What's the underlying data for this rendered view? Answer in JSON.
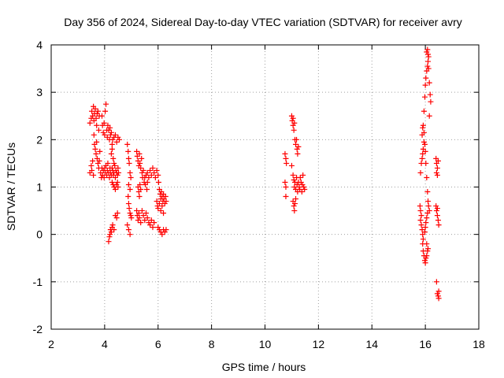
{
  "chart_data": {
    "type": "scatter",
    "title": "Day 356 of 2024, Sidereal Day-to-day VTEC variation (SDTVAR) for receiver avry",
    "xlabel": "GPS time / hours",
    "ylabel": "SDTVAR / TECUs",
    "xlim": [
      2,
      18
    ],
    "ylim": [
      -2,
      4
    ],
    "xticks": [
      2,
      4,
      6,
      8,
      10,
      12,
      14,
      16,
      18
    ],
    "yticks": [
      -2,
      -1,
      0,
      1,
      2,
      3,
      4
    ],
    "xtick_labels": [
      "2",
      "4",
      "6",
      "8",
      "10",
      "12",
      "14",
      "16",
      "18"
    ],
    "ytick_labels": [
      "-2",
      "-1",
      "0",
      "1",
      "2",
      "3",
      "4"
    ],
    "grid": true,
    "marker": "+",
    "color": "#ff0000",
    "series": [
      {
        "name": "SDTVAR",
        "points": [
          [
            3.45,
            2.35
          ],
          [
            3.5,
            2.45
          ],
          [
            3.52,
            2.6
          ],
          [
            3.55,
            2.5
          ],
          [
            3.58,
            2.7
          ],
          [
            3.6,
            2.4
          ],
          [
            3.62,
            2.55
          ],
          [
            3.65,
            2.65
          ],
          [
            3.68,
            2.45
          ],
          [
            3.7,
            2.3
          ],
          [
            3.72,
            2.55
          ],
          [
            3.75,
            2.6
          ],
          [
            3.78,
            2.2
          ],
          [
            3.8,
            2.5
          ],
          [
            3.6,
            2.1
          ],
          [
            3.62,
            1.9
          ],
          [
            3.65,
            1.8
          ],
          [
            3.68,
            1.7
          ],
          [
            3.7,
            1.95
          ],
          [
            3.72,
            1.6
          ],
          [
            3.75,
            1.5
          ],
          [
            3.78,
            1.4
          ],
          [
            3.8,
            1.55
          ],
          [
            3.82,
            1.75
          ],
          [
            3.45,
            1.3
          ],
          [
            3.5,
            1.45
          ],
          [
            3.52,
            1.35
          ],
          [
            3.55,
            1.55
          ],
          [
            3.58,
            1.25
          ],
          [
            3.85,
            1.3
          ],
          [
            3.88,
            1.2
          ],
          [
            3.9,
            1.4
          ],
          [
            3.92,
            1.25
          ],
          [
            3.95,
            1.35
          ],
          [
            3.98,
            1.2
          ],
          [
            4.0,
            1.4
          ],
          [
            4.02,
            1.3
          ],
          [
            4.05,
            1.45
          ],
          [
            4.08,
            1.25
          ],
          [
            4.1,
            1.35
          ],
          [
            4.12,
            1.5
          ],
          [
            4.15,
            1.3
          ],
          [
            4.18,
            1.2
          ],
          [
            4.2,
            1.4
          ],
          [
            4.22,
            1.3
          ],
          [
            4.25,
            1.25
          ],
          [
            4.28,
            1.4
          ],
          [
            4.3,
            1.35
          ],
          [
            4.32,
            1.25
          ],
          [
            4.35,
            1.3
          ],
          [
            4.38,
            1.45
          ],
          [
            4.4,
            1.2
          ],
          [
            4.42,
            1.35
          ],
          [
            4.45,
            1.3
          ],
          [
            4.48,
            1.25
          ],
          [
            4.5,
            1.4
          ],
          [
            4.52,
            1.3
          ],
          [
            4.28,
            1.1
          ],
          [
            4.32,
            1.05
          ],
          [
            4.36,
            1.0
          ],
          [
            4.4,
            0.95
          ],
          [
            4.44,
            1.05
          ],
          [
            4.48,
            1.1
          ],
          [
            4.5,
            1.0
          ],
          [
            3.9,
            2.5
          ],
          [
            3.92,
            2.3
          ],
          [
            3.95,
            2.15
          ],
          [
            3.98,
            2.35
          ],
          [
            4.0,
            2.1
          ],
          [
            4.02,
            2.6
          ],
          [
            4.05,
            2.75
          ],
          [
            4.08,
            2.2
          ],
          [
            4.1,
            2.05
          ],
          [
            4.12,
            2.3
          ],
          [
            4.15,
            2.2
          ],
          [
            4.18,
            2.0
          ],
          [
            4.2,
            2.25
          ],
          [
            4.22,
            2.1
          ],
          [
            4.25,
            2.15
          ],
          [
            4.28,
            1.9
          ],
          [
            4.3,
            2.0
          ],
          [
            4.35,
            2.05
          ],
          [
            4.4,
            2.1
          ],
          [
            4.45,
            1.95
          ],
          [
            4.5,
            2.05
          ],
          [
            4.55,
            2.0
          ],
          [
            4.25,
            1.7
          ],
          [
            4.28,
            1.8
          ],
          [
            4.32,
            1.6
          ],
          [
            4.35,
            1.5
          ],
          [
            4.15,
            -0.15
          ],
          [
            4.18,
            -0.05
          ],
          [
            4.2,
            0.0
          ],
          [
            4.22,
            0.1
          ],
          [
            4.25,
            0.05
          ],
          [
            4.28,
            0.15
          ],
          [
            4.3,
            0.2
          ],
          [
            4.35,
            0.1
          ],
          [
            4.4,
            0.4
          ],
          [
            4.45,
            0.35
          ],
          [
            4.48,
            0.45
          ],
          [
            4.85,
            1.9
          ],
          [
            4.88,
            1.75
          ],
          [
            4.9,
            1.6
          ],
          [
            4.92,
            1.5
          ],
          [
            4.95,
            1.3
          ],
          [
            4.98,
            1.2
          ],
          [
            4.9,
            1.05
          ],
          [
            4.95,
            0.95
          ],
          [
            4.88,
            0.8
          ],
          [
            4.9,
            0.65
          ],
          [
            4.92,
            0.55
          ],
          [
            4.95,
            0.45
          ],
          [
            4.98,
            0.4
          ],
          [
            5.0,
            0.35
          ],
          [
            4.85,
            0.2
          ],
          [
            4.9,
            0.1
          ],
          [
            4.95,
            0.0
          ],
          [
            5.2,
            1.75
          ],
          [
            5.22,
            1.65
          ],
          [
            5.25,
            1.55
          ],
          [
            5.28,
            1.45
          ],
          [
            5.3,
            1.7
          ],
          [
            5.32,
            1.5
          ],
          [
            5.35,
            1.4
          ],
          [
            5.38,
            1.6
          ],
          [
            5.4,
            1.3
          ],
          [
            5.42,
            1.2
          ],
          [
            5.45,
            1.35
          ],
          [
            5.48,
            1.1
          ],
          [
            5.5,
            1.2
          ],
          [
            5.52,
            1.05
          ],
          [
            5.55,
            1.25
          ],
          [
            5.58,
            0.95
          ],
          [
            5.6,
            1.1
          ],
          [
            5.25,
            1.0
          ],
          [
            5.28,
            0.9
          ],
          [
            5.3,
            0.8
          ],
          [
            5.32,
            1.05
          ],
          [
            5.35,
            0.95
          ],
          [
            5.2,
            0.5
          ],
          [
            5.22,
            0.4
          ],
          [
            5.25,
            0.3
          ],
          [
            5.28,
            0.45
          ],
          [
            5.3,
            0.35
          ],
          [
            5.35,
            0.25
          ],
          [
            5.4,
            0.5
          ],
          [
            5.45,
            0.4
          ],
          [
            5.5,
            0.3
          ],
          [
            5.55,
            0.45
          ],
          [
            5.6,
            0.35
          ],
          [
            5.65,
            0.25
          ],
          [
            5.7,
            0.2
          ],
          [
            5.75,
            0.3
          ],
          [
            5.8,
            0.15
          ],
          [
            5.85,
            0.25
          ],
          [
            5.6,
            1.3
          ],
          [
            5.65,
            1.2
          ],
          [
            5.7,
            1.35
          ],
          [
            5.75,
            1.25
          ],
          [
            5.8,
            1.4
          ],
          [
            5.85,
            1.3
          ],
          [
            5.9,
            1.2
          ],
          [
            5.95,
            1.35
          ],
          [
            6.0,
            1.25
          ],
          [
            6.02,
            1.1
          ],
          [
            6.05,
            0.95
          ],
          [
            6.08,
            0.85
          ],
          [
            6.1,
            0.75
          ],
          [
            6.12,
            0.9
          ],
          [
            6.15,
            0.8
          ],
          [
            6.18,
            0.7
          ],
          [
            6.2,
            0.85
          ],
          [
            6.22,
            0.75
          ],
          [
            6.25,
            0.65
          ],
          [
            6.28,
            0.8
          ],
          [
            6.3,
            0.7
          ],
          [
            5.95,
            0.7
          ],
          [
            5.98,
            0.6
          ],
          [
            6.0,
            0.55
          ],
          [
            6.05,
            0.65
          ],
          [
            6.1,
            0.5
          ],
          [
            6.15,
            0.6
          ],
          [
            6.2,
            0.45
          ],
          [
            6.0,
            0.15
          ],
          [
            6.05,
            0.1
          ],
          [
            6.1,
            0.05
          ],
          [
            6.15,
            0.0
          ],
          [
            6.2,
            0.1
          ],
          [
            6.25,
            0.05
          ],
          [
            6.3,
            0.1
          ],
          [
            10.75,
            1.7
          ],
          [
            10.78,
            1.6
          ],
          [
            10.8,
            1.5
          ],
          [
            10.75,
            1.1
          ],
          [
            10.78,
            1.0
          ],
          [
            10.78,
            0.8
          ],
          [
            11.0,
            2.5
          ],
          [
            11.02,
            2.4
          ],
          [
            11.05,
            2.3
          ],
          [
            11.08,
            2.2
          ],
          [
            11.1,
            2.35
          ],
          [
            11.05,
            2.45
          ],
          [
            11.12,
            2.0
          ],
          [
            11.15,
            1.9
          ],
          [
            11.18,
            2.0
          ],
          [
            11.2,
            1.8
          ],
          [
            11.22,
            1.7
          ],
          [
            11.25,
            1.85
          ],
          [
            11.0,
            1.45
          ],
          [
            11.05,
            1.25
          ],
          [
            11.08,
            1.15
          ],
          [
            11.1,
            1.0
          ],
          [
            11.12,
            1.1
          ],
          [
            11.15,
            0.95
          ],
          [
            11.18,
            1.2
          ],
          [
            11.2,
            1.05
          ],
          [
            11.22,
            0.9
          ],
          [
            11.25,
            1.1
          ],
          [
            11.28,
            1.0
          ],
          [
            11.3,
            0.95
          ],
          [
            11.32,
            1.2
          ],
          [
            11.35,
            1.1
          ],
          [
            11.38,
            0.9
          ],
          [
            11.4,
            1.05
          ],
          [
            11.42,
            1.25
          ],
          [
            11.45,
            1.0
          ],
          [
            11.48,
            0.95
          ],
          [
            11.05,
            0.7
          ],
          [
            11.08,
            0.6
          ],
          [
            11.1,
            0.5
          ],
          [
            11.12,
            0.65
          ],
          [
            11.15,
            0.75
          ],
          [
            15.8,
            0.6
          ],
          [
            15.82,
            0.5
          ],
          [
            15.85,
            0.4
          ],
          [
            15.82,
            0.3
          ],
          [
            15.85,
            0.2
          ],
          [
            15.88,
            0.1
          ],
          [
            15.9,
            0.0
          ],
          [
            15.92,
            -0.1
          ],
          [
            15.9,
            -0.2
          ],
          [
            15.92,
            -0.35
          ],
          [
            15.95,
            -0.45
          ],
          [
            15.98,
            -0.55
          ],
          [
            16.0,
            -0.6
          ],
          [
            16.02,
            -0.5
          ],
          [
            16.05,
            -0.45
          ],
          [
            16.08,
            -0.35
          ],
          [
            16.1,
            -0.3
          ],
          [
            16.05,
            -0.2
          ],
          [
            15.98,
            0.05
          ],
          [
            16.0,
            0.15
          ],
          [
            16.02,
            0.25
          ],
          [
            16.05,
            0.35
          ],
          [
            16.08,
            0.45
          ],
          [
            15.82,
            1.3
          ],
          [
            15.85,
            1.5
          ],
          [
            15.88,
            1.6
          ],
          [
            15.9,
            1.7
          ],
          [
            15.92,
            1.8
          ],
          [
            15.95,
            1.95
          ],
          [
            15.88,
            2.1
          ],
          [
            15.9,
            2.25
          ],
          [
            15.92,
            2.3
          ],
          [
            15.95,
            2.15
          ],
          [
            15.98,
            1.9
          ],
          [
            16.0,
            1.75
          ],
          [
            16.02,
            1.5
          ],
          [
            16.05,
            1.2
          ],
          [
            16.08,
            0.9
          ],
          [
            16.1,
            0.7
          ],
          [
            16.12,
            0.6
          ],
          [
            16.15,
            0.5
          ],
          [
            15.95,
            2.6
          ],
          [
            15.98,
            2.9
          ],
          [
            16.0,
            3.15
          ],
          [
            16.02,
            3.3
          ],
          [
            16.05,
            3.45
          ],
          [
            16.08,
            3.55
          ],
          [
            16.1,
            3.65
          ],
          [
            16.12,
            3.75
          ],
          [
            16.05,
            3.85
          ],
          [
            16.08,
            3.9
          ],
          [
            16.1,
            3.8
          ],
          [
            16.12,
            3.5
          ],
          [
            16.15,
            3.2
          ],
          [
            16.18,
            2.95
          ],
          [
            16.2,
            2.8
          ],
          [
            16.15,
            2.5
          ],
          [
            16.4,
            1.6
          ],
          [
            16.42,
            1.5
          ],
          [
            16.45,
            1.4
          ],
          [
            16.42,
            1.3
          ],
          [
            16.45,
            1.25
          ],
          [
            16.48,
            1.55
          ],
          [
            16.4,
            0.6
          ],
          [
            16.42,
            0.5
          ],
          [
            16.45,
            0.4
          ],
          [
            16.48,
            0.3
          ],
          [
            16.5,
            0.2
          ],
          [
            16.45,
            0.55
          ],
          [
            16.42,
            -1.0
          ],
          [
            16.45,
            -1.25
          ],
          [
            16.48,
            -1.3
          ],
          [
            16.5,
            -1.35
          ],
          [
            16.5,
            -1.2
          ]
        ]
      }
    ]
  }
}
